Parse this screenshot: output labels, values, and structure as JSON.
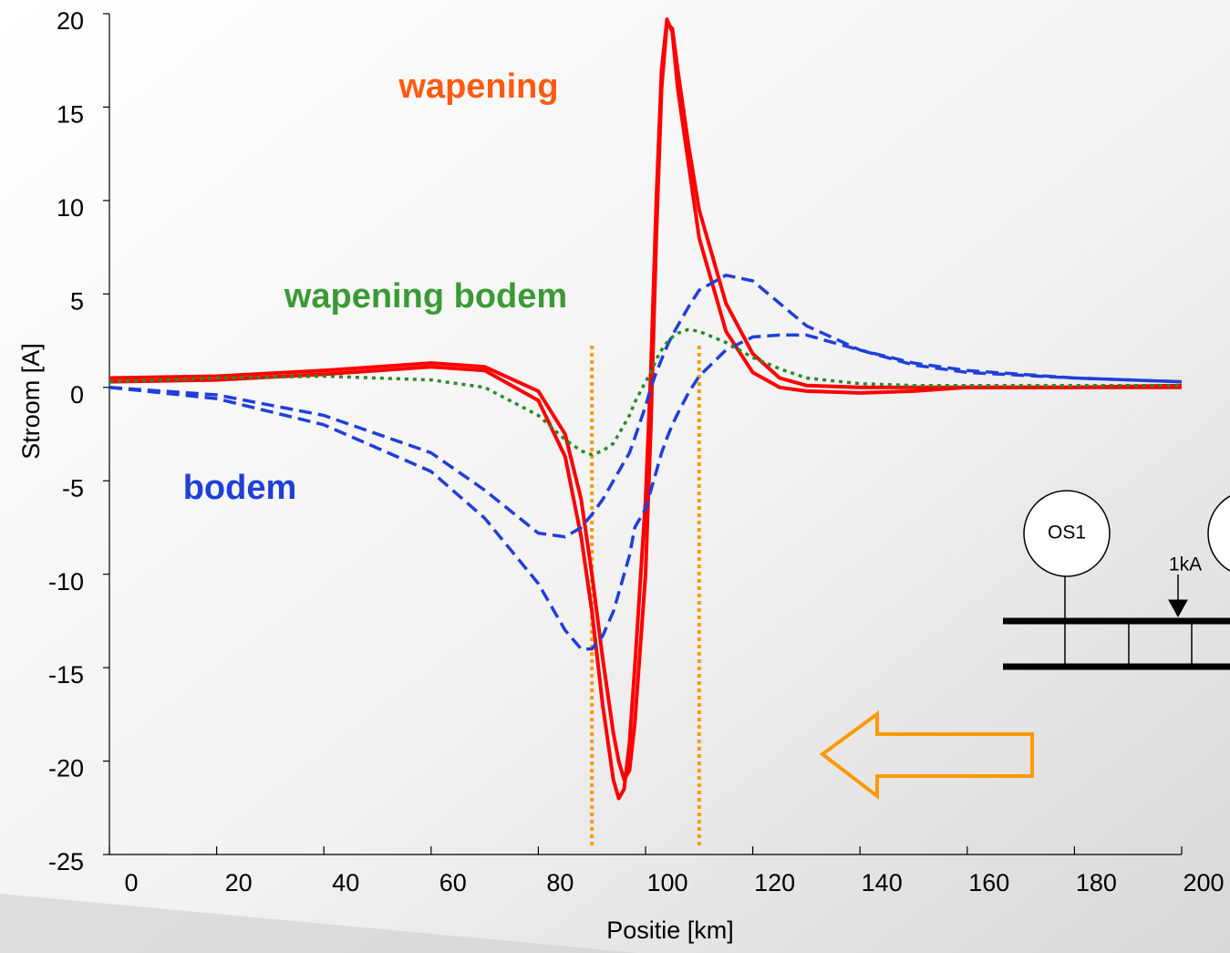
{
  "chart_data": {
    "type": "line",
    "xlabel": "Positie [km]",
    "ylabel": "Stroom [A]",
    "x": [
      0,
      20,
      40,
      60,
      70,
      80,
      85,
      88,
      90,
      92,
      94,
      95,
      96,
      97,
      98,
      100,
      101,
      102,
      103,
      104,
      105,
      106,
      108,
      110,
      115,
      120,
      125,
      130,
      140,
      150,
      160,
      180,
      200
    ],
    "series": [
      {
        "color": "#ff0000",
        "style": "solid",
        "values": [
          0.3,
          0.4,
          0.7,
          1.1,
          0.9,
          -0.7,
          -3.7,
          -8,
          -12,
          -17,
          -21,
          -22,
          -21.5,
          -19,
          -15,
          -6,
          1,
          10,
          17,
          19.7,
          19,
          16,
          12,
          8,
          3,
          0.8,
          0,
          -0.2,
          -0.3,
          -0.2,
          0,
          0,
          0.1
        ]
      },
      {
        "color": "#ff0000",
        "style": "solid",
        "values": [
          0.5,
          0.6,
          0.9,
          1.3,
          1.1,
          -0.2,
          -2.5,
          -6,
          -10,
          -14.5,
          -18.5,
          -20,
          -21,
          -20.5,
          -18,
          -10,
          -2,
          8,
          16,
          19.5,
          19.2,
          17,
          13,
          9.5,
          4.5,
          1.8,
          0.5,
          0.1,
          0,
          0,
          0,
          0,
          0
        ]
      },
      {
        "color": "#1f3fd8",
        "style": "dashed",
        "values": [
          0,
          -0.6,
          -2,
          -4.5,
          -7,
          -10.5,
          -13,
          -14,
          -14,
          -13.3,
          -12,
          -11,
          -10,
          -9,
          -7.5,
          -6.5,
          -5.5,
          -4.5,
          -3.5,
          -2.7,
          -2,
          -1.4,
          -0.3,
          0.6,
          2,
          2.7,
          2.8,
          2.8,
          2,
          1.2,
          0.8,
          0.5,
          0.3
        ]
      },
      {
        "color": "#1f3fd8",
        "style": "dashed",
        "values": [
          0,
          -0.4,
          -1.5,
          -3.5,
          -5.5,
          -7.8,
          -8,
          -7.5,
          -6.8,
          -6,
          -5,
          -4.5,
          -4,
          -3.5,
          -2.7,
          -1,
          0,
          0.8,
          1.5,
          2.2,
          2.8,
          3.3,
          4.3,
          5.2,
          6,
          5.7,
          4.5,
          3.3,
          2,
          1.3,
          0.9,
          0.5,
          0.3
        ]
      },
      {
        "color": "#2a8a2a",
        "style": "dotted",
        "values": [
          0.3,
          0.5,
          0.6,
          0.4,
          0,
          -1.5,
          -2.8,
          -3.4,
          -3.6,
          -3.4,
          -3,
          -2.5,
          -2,
          -1.5,
          -0.8,
          0.3,
          0.8,
          1.5,
          2,
          2.4,
          2.7,
          2.9,
          3.1,
          3,
          2.4,
          1.6,
          1,
          0.5,
          0.2,
          0.1,
          0.1,
          0.1,
          0.1
        ]
      }
    ],
    "vlines": [
      90,
      110
    ],
    "vline_color": "#ff9900",
    "annotations": [
      {
        "text": "wapening",
        "color": "#ff5a14"
      },
      {
        "text": "wapening bodem",
        "color": "#3a9a34"
      },
      {
        "text": "bodem",
        "color": "#1f3fd8"
      }
    ],
    "xlim": [
      0,
      200
    ],
    "xticks": [
      0,
      20,
      40,
      60,
      80,
      100,
      120,
      140,
      160,
      180,
      200
    ],
    "ylim": [
      -25,
      20
    ],
    "yticks": [
      20,
      15,
      10,
      5,
      0,
      -5,
      -10,
      -15,
      -20,
      -25
    ]
  },
  "diagram": {
    "labels": [
      "OS1",
      "1kA"
    ]
  }
}
